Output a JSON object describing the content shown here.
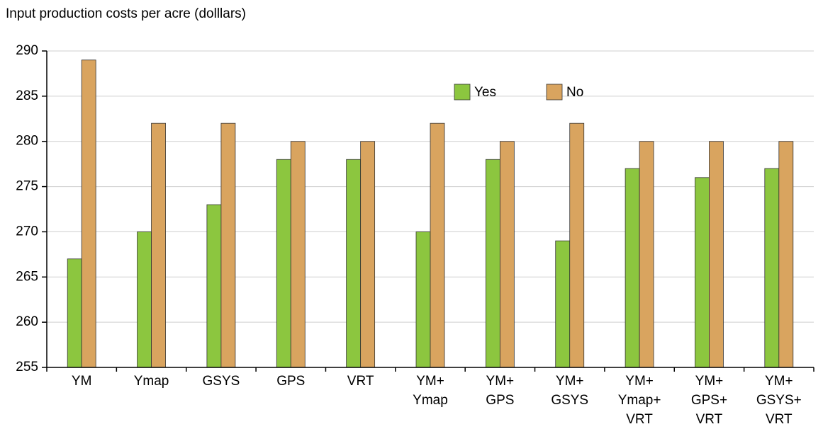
{
  "chart_data": {
    "type": "bar",
    "title": "Input production costs per acre (dolllars)",
    "categories": [
      "YM",
      "Ymap",
      "GSYS",
      "GPS",
      "VRT",
      "YM+\nYmap",
      "YM+\nGPS",
      "YM+\nGSYS",
      "YM+\nYmap+\nVRT",
      "YM+\nGPS+\nVRT",
      "YM+\nGSYS+\nVRT"
    ],
    "series": [
      {
        "name": "Yes",
        "color": "#8cc63f",
        "values": [
          267,
          270,
          273,
          278,
          278,
          270,
          278,
          269,
          277,
          276,
          277
        ]
      },
      {
        "name": "No",
        "color": "#d9a45f",
        "values": [
          289,
          282,
          282,
          280,
          280,
          282,
          280,
          282,
          280,
          280,
          280
        ]
      }
    ],
    "ylim": [
      255,
      290
    ],
    "yticks": [
      255,
      260,
      265,
      270,
      275,
      280,
      285,
      290
    ],
    "grid": true
  }
}
